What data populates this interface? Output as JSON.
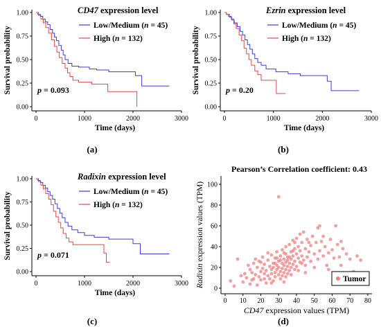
{
  "chart_data": [
    {
      "panel_label": "(a)",
      "type": "line",
      "title_gene": "CD47",
      "title_suffix": " expression level",
      "xlabel": "Time (days)",
      "ylabel": "Survival probability",
      "xlim": [
        0,
        3000
      ],
      "ylim": [
        0,
        1
      ],
      "xticks": [
        "0",
        "1000",
        "2000",
        "3000"
      ],
      "yticks": [
        "0.00",
        "0.25",
        "0.50",
        "0.75",
        "1.00"
      ],
      "pvalue": "p = 0.093",
      "series": [
        {
          "name_prefix": "Low/Medium",
          "n_label": "(n = 45)",
          "color": "#3b3bd8",
          "points": [
            [
              0,
              1
            ],
            [
              40,
              0.98
            ],
            [
              90,
              0.96
            ],
            [
              140,
              0.93
            ],
            [
              190,
              0.9
            ],
            [
              240,
              0.87
            ],
            [
              290,
              0.82
            ],
            [
              340,
              0.78
            ],
            [
              380,
              0.74
            ],
            [
              420,
              0.7
            ],
            [
              470,
              0.65
            ],
            [
              520,
              0.6
            ],
            [
              560,
              0.55
            ],
            [
              600,
              0.5
            ],
            [
              660,
              0.46
            ],
            [
              740,
              0.43
            ],
            [
              880,
              0.42
            ],
            [
              1100,
              0.4
            ],
            [
              1250,
              0.39
            ],
            [
              1500,
              0.37
            ],
            [
              2050,
              0.33
            ],
            [
              2180,
              0.22
            ],
            [
              2750,
              0.22
            ]
          ]
        },
        {
          "name_prefix": "High",
          "n_label": "(n = 132)",
          "color": "#e04848",
          "points": [
            [
              0,
              1
            ],
            [
              50,
              0.97
            ],
            [
              100,
              0.93
            ],
            [
              150,
              0.89
            ],
            [
              200,
              0.84
            ],
            [
              260,
              0.78
            ],
            [
              320,
              0.71
            ],
            [
              380,
              0.64
            ],
            [
              430,
              0.58
            ],
            [
              480,
              0.52
            ],
            [
              540,
              0.46
            ],
            [
              600,
              0.41
            ],
            [
              650,
              0.36
            ],
            [
              700,
              0.32
            ],
            [
              760,
              0.28
            ],
            [
              880,
              0.26
            ],
            [
              1150,
              0.24
            ],
            [
              1480,
              0.16
            ],
            [
              2000,
              0.16
            ],
            [
              2080,
              0.0
            ]
          ]
        }
      ]
    },
    {
      "panel_label": "(b)",
      "type": "line",
      "title_gene": "Ezrin",
      "title_suffix": " expression level",
      "xlabel": "Time (days)",
      "ylabel": "Survival probability",
      "xlim": [
        0,
        3000
      ],
      "ylim": [
        0,
        1
      ],
      "xticks": [
        "0",
        "1000",
        "2000",
        "3000"
      ],
      "yticks": [
        "0.00",
        "0.25",
        "0.50",
        "0.75",
        "1.00"
      ],
      "pvalue": "p = 0.20",
      "series": [
        {
          "name_prefix": "Low/Medium",
          "n_label": "(n = 45)",
          "color": "#3b3bd8",
          "points": [
            [
              0,
              1
            ],
            [
              40,
              0.98
            ],
            [
              100,
              0.95
            ],
            [
              150,
              0.92
            ],
            [
              200,
              0.89
            ],
            [
              260,
              0.85
            ],
            [
              320,
              0.8
            ],
            [
              370,
              0.76
            ],
            [
              420,
              0.71
            ],
            [
              470,
              0.66
            ],
            [
              520,
              0.61
            ],
            [
              570,
              0.56
            ],
            [
              620,
              0.51
            ],
            [
              680,
              0.47
            ],
            [
              750,
              0.44
            ],
            [
              850,
              0.4
            ],
            [
              1050,
              0.37
            ],
            [
              1300,
              0.35
            ],
            [
              1550,
              0.33
            ],
            [
              2100,
              0.27
            ],
            [
              2180,
              0.17
            ],
            [
              2750,
              0.17
            ]
          ]
        },
        {
          "name_prefix": "High",
          "n_label": "(n = 132)",
          "color": "#e04848",
          "points": [
            [
              0,
              1
            ],
            [
              40,
              0.98
            ],
            [
              80,
              0.96
            ],
            [
              140,
              0.93
            ],
            [
              190,
              0.88
            ],
            [
              240,
              0.83
            ],
            [
              300,
              0.76
            ],
            [
              350,
              0.7
            ],
            [
              400,
              0.62
            ],
            [
              450,
              0.56
            ],
            [
              500,
              0.5
            ],
            [
              550,
              0.44
            ],
            [
              620,
              0.38
            ],
            [
              680,
              0.34
            ],
            [
              750,
              0.28
            ],
            [
              1000,
              0.28
            ],
            [
              1060,
              0.14
            ],
            [
              1250,
              0.14
            ]
          ]
        }
      ]
    },
    {
      "panel_label": "(c)",
      "type": "line",
      "title_gene": "Radixin",
      "title_suffix": " expression level",
      "xlabel": "Time (days)",
      "ylabel": "Survival probability",
      "xlim": [
        0,
        3000
      ],
      "ylim": [
        0,
        1
      ],
      "xticks": [
        "0",
        "1000",
        "2000",
        "3000"
      ],
      "yticks": [
        "0.00",
        "0.25",
        "0.50",
        "0.75",
        "1.00"
      ],
      "pvalue": "p = 0.071",
      "series": [
        {
          "name_prefix": "Low/Medium",
          "n_label": "(n = 45)",
          "color": "#3b3bd8",
          "points": [
            [
              0,
              1
            ],
            [
              40,
              0.98
            ],
            [
              90,
              0.96
            ],
            [
              140,
              0.93
            ],
            [
              190,
              0.9
            ],
            [
              240,
              0.86
            ],
            [
              290,
              0.82
            ],
            [
              340,
              0.78
            ],
            [
              390,
              0.73
            ],
            [
              440,
              0.68
            ],
            [
              490,
              0.63
            ],
            [
              540,
              0.58
            ],
            [
              600,
              0.53
            ],
            [
              660,
              0.49
            ],
            [
              740,
              0.45
            ],
            [
              860,
              0.42
            ],
            [
              1000,
              0.39
            ],
            [
              1200,
              0.37
            ],
            [
              1500,
              0.35
            ],
            [
              2000,
              0.3
            ],
            [
              2150,
              0.19
            ],
            [
              2750,
              0.19
            ]
          ]
        },
        {
          "name_prefix": "High",
          "n_label": "(n = 132)",
          "color": "#e04848",
          "points": [
            [
              0,
              1
            ],
            [
              50,
              0.97
            ],
            [
              100,
              0.93
            ],
            [
              150,
              0.89
            ],
            [
              200,
              0.84
            ],
            [
              260,
              0.78
            ],
            [
              310,
              0.72
            ],
            [
              360,
              0.65
            ],
            [
              410,
              0.59
            ],
            [
              460,
              0.53
            ],
            [
              510,
              0.47
            ],
            [
              560,
              0.41
            ],
            [
              620,
              0.36
            ],
            [
              680,
              0.32
            ],
            [
              760,
              0.29
            ],
            [
              1000,
              0.29
            ],
            [
              1400,
              0.2
            ],
            [
              1450,
              0.1
            ],
            [
              1520,
              0.1
            ]
          ]
        }
      ]
    },
    {
      "panel_label": "(d)",
      "type": "scatter",
      "title": "Pearson’s Correlation coefficient:  0.43",
      "xlabel": "CD47 expression values (TPM)",
      "xlabel_gene": "CD47",
      "xlabel_rest": " expression values (TPM)",
      "ylabel_gene": "Radixin",
      "ylabel_rest": " expression values (TPM)",
      "xlim": [
        0,
        80
      ],
      "ylim": [
        0,
        100
      ],
      "xticks": [
        "0",
        "10",
        "20",
        "30",
        "40",
        "50",
        "60",
        "70",
        "80"
      ],
      "yticks": [
        "0",
        "20",
        "40",
        "60",
        "80",
        "100"
      ],
      "legend": "Tumor",
      "legend_position": "bottom-right",
      "color": "#f08080",
      "points": [
        [
          3,
          7
        ],
        [
          5,
          2
        ],
        [
          7,
          28
        ],
        [
          9,
          12
        ],
        [
          10,
          6
        ],
        [
          12,
          10
        ],
        [
          13,
          22
        ],
        [
          14,
          18
        ],
        [
          14,
          4
        ],
        [
          15,
          15
        ],
        [
          16,
          24
        ],
        [
          16,
          9
        ],
        [
          17,
          13
        ],
        [
          18,
          20
        ],
        [
          18,
          3
        ],
        [
          19,
          26
        ],
        [
          19,
          11
        ],
        [
          20,
          16
        ],
        [
          20,
          8
        ],
        [
          21,
          30
        ],
        [
          21,
          19
        ],
        [
          22,
          14
        ],
        [
          22,
          23
        ],
        [
          23,
          5
        ],
        [
          23,
          17
        ],
        [
          24,
          27
        ],
        [
          24,
          12
        ],
        [
          25,
          21
        ],
        [
          25,
          9
        ],
        [
          26,
          32
        ],
        [
          26,
          18
        ],
        [
          26,
          14
        ],
        [
          27,
          24
        ],
        [
          27,
          7
        ],
        [
          27,
          20
        ],
        [
          28,
          29
        ],
        [
          28,
          15
        ],
        [
          28,
          11
        ],
        [
          29,
          22
        ],
        [
          29,
          35
        ],
        [
          29,
          18
        ],
        [
          30,
          88
        ],
        [
          30,
          26
        ],
        [
          30,
          13
        ],
        [
          30,
          20
        ],
        [
          31,
          31
        ],
        [
          31,
          16
        ],
        [
          31,
          9
        ],
        [
          32,
          24
        ],
        [
          32,
          37
        ],
        [
          32,
          19
        ],
        [
          32,
          12
        ],
        [
          33,
          28
        ],
        [
          33,
          22
        ],
        [
          33,
          15
        ],
        [
          33,
          6
        ],
        [
          34,
          33
        ],
        [
          34,
          25
        ],
        [
          34,
          18
        ],
        [
          34,
          40
        ],
        [
          35,
          27
        ],
        [
          35,
          21
        ],
        [
          35,
          14
        ],
        [
          35,
          30
        ],
        [
          36,
          42
        ],
        [
          36,
          24
        ],
        [
          36,
          17
        ],
        [
          37,
          35
        ],
        [
          37,
          28
        ],
        [
          37,
          20
        ],
        [
          38,
          46
        ],
        [
          38,
          31
        ],
        [
          38,
          23
        ],
        [
          39,
          26
        ],
        [
          39,
          18
        ],
        [
          39,
          38
        ],
        [
          40,
          33
        ],
        [
          40,
          48
        ],
        [
          40,
          21
        ],
        [
          41,
          29
        ],
        [
          41,
          40
        ],
        [
          42,
          36
        ],
        [
          42,
          25
        ],
        [
          42,
          52
        ],
        [
          43,
          31
        ],
        [
          43,
          44
        ],
        [
          44,
          54
        ],
        [
          44,
          27
        ],
        [
          45,
          38
        ],
        [
          45,
          22
        ],
        [
          46,
          47
        ],
        [
          46,
          30
        ],
        [
          47,
          35
        ],
        [
          48,
          41
        ],
        [
          48,
          26
        ],
        [
          49,
          50
        ],
        [
          50,
          33
        ],
        [
          51,
          44
        ],
        [
          52,
          58
        ],
        [
          52,
          28
        ],
        [
          53,
          60
        ],
        [
          53,
          36
        ],
        [
          54,
          45
        ],
        [
          55,
          31
        ],
        [
          56,
          40
        ],
        [
          57,
          22
        ],
        [
          58,
          34
        ],
        [
          59,
          47
        ],
        [
          60,
          37
        ],
        [
          61,
          29
        ],
        [
          62,
          60
        ],
        [
          63,
          42
        ],
        [
          64,
          30
        ],
        [
          65,
          22
        ],
        [
          66,
          38
        ],
        [
          68,
          33
        ],
        [
          70,
          28
        ],
        [
          72,
          16
        ],
        [
          74,
          31
        ],
        [
          76,
          27
        ],
        [
          11,
          14
        ],
        [
          15,
          8
        ],
        [
          17,
          28
        ],
        [
          20,
          25
        ],
        [
          22,
          9
        ],
        [
          24,
          34
        ],
        [
          26,
          5
        ],
        [
          28,
          24
        ],
        [
          29,
          29
        ],
        [
          31,
          27
        ],
        [
          33,
          34
        ],
        [
          34,
          11
        ],
        [
          36,
          30
        ],
        [
          37,
          13
        ],
        [
          38,
          36
        ],
        [
          39,
          44
        ],
        [
          41,
          17
        ],
        [
          43,
          24
        ],
        [
          45,
          15
        ],
        [
          47,
          44
        ],
        [
          50,
          20
        ],
        [
          55,
          50
        ],
        [
          58,
          18
        ],
        [
          65,
          45
        ]
      ]
    }
  ]
}
